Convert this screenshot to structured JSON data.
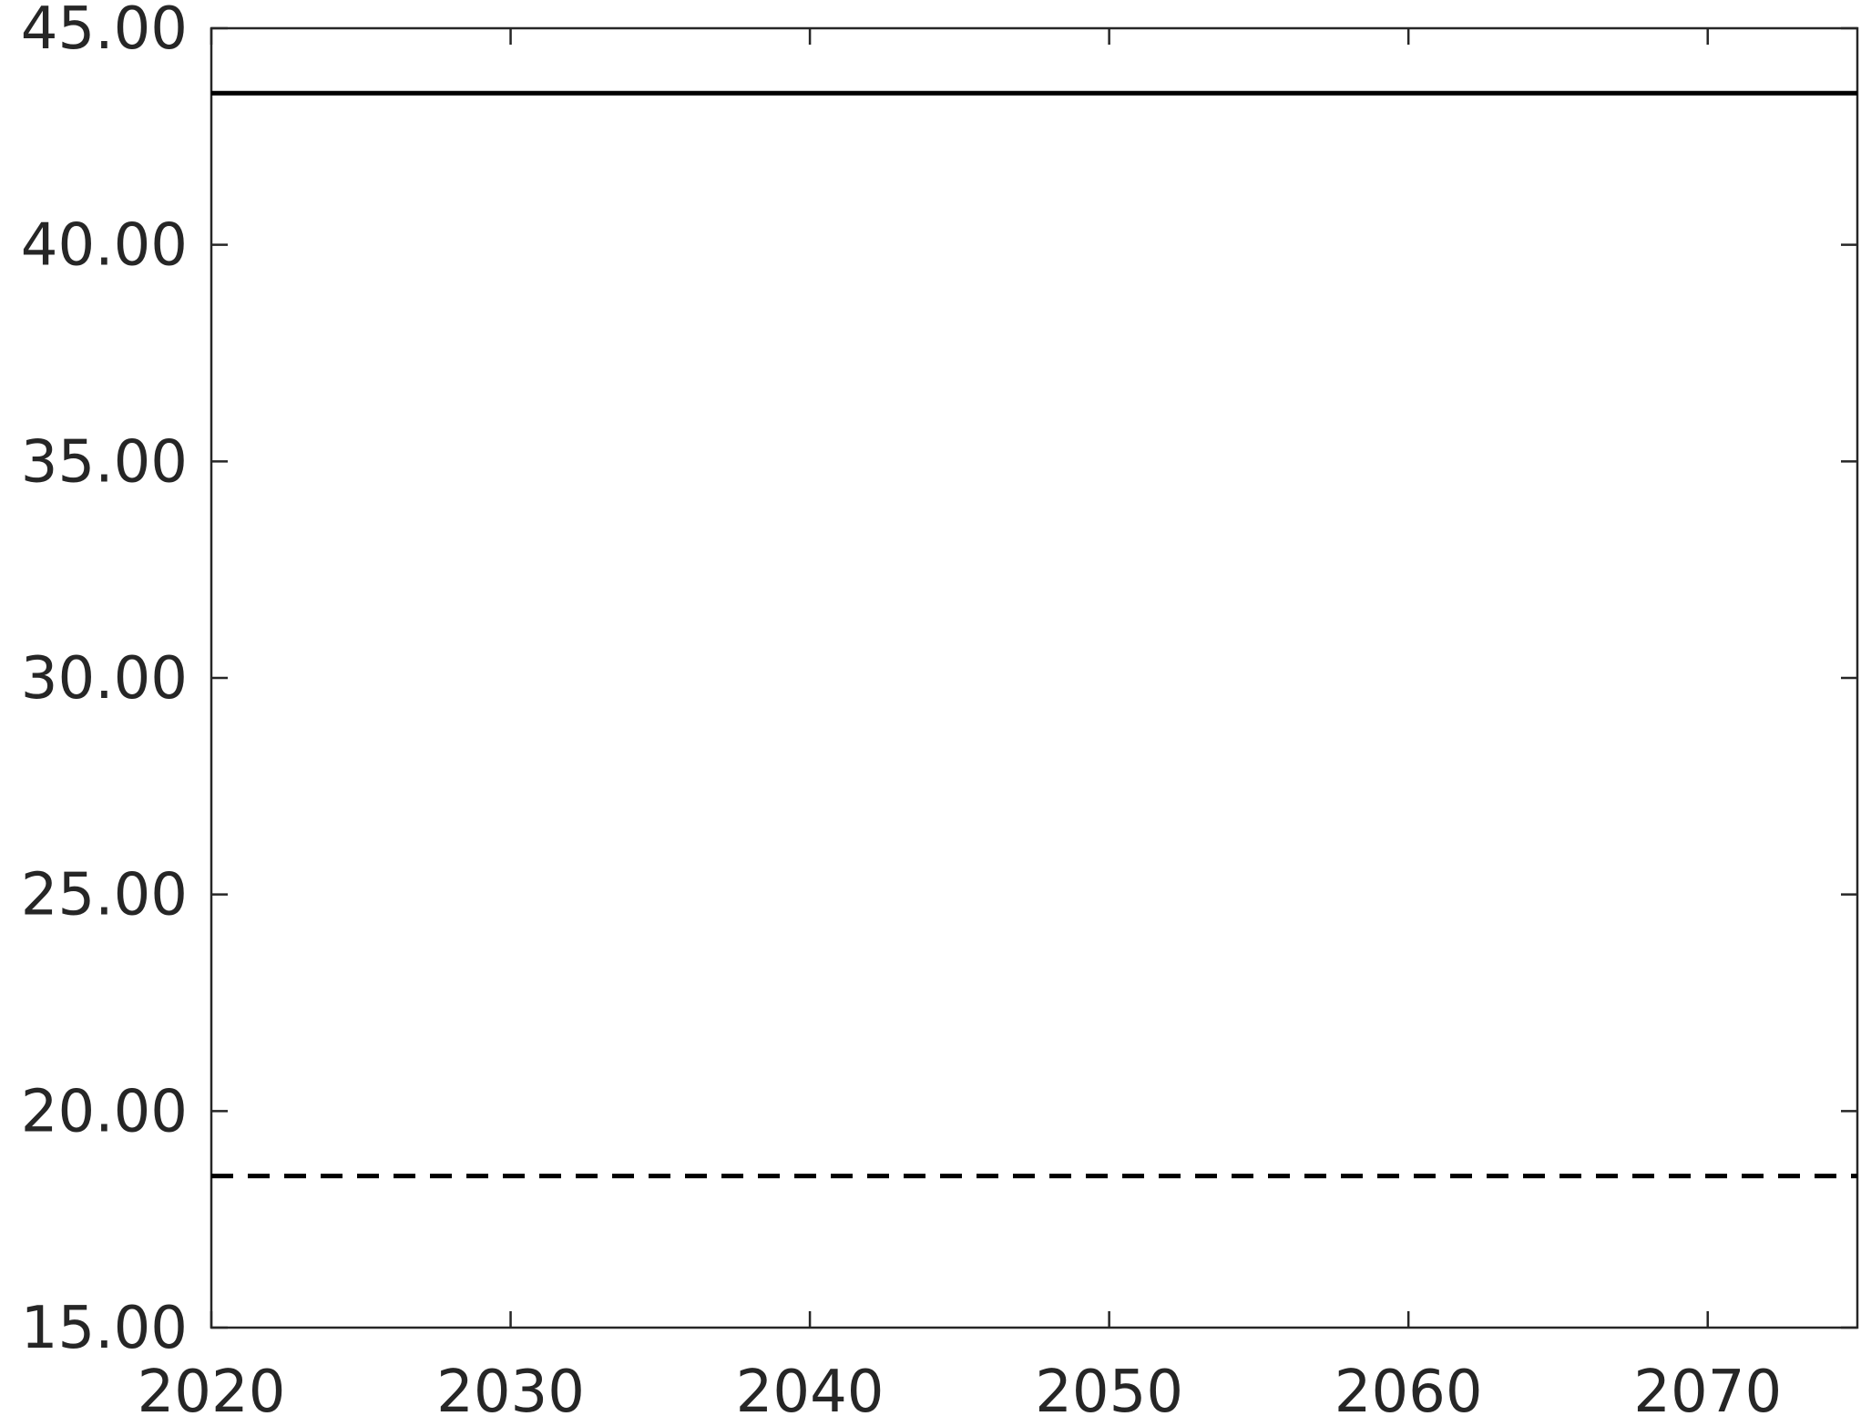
{
  "chart_data": {
    "type": "line",
    "title": "",
    "xlabel": "",
    "ylabel": "",
    "xlim": [
      2020,
      2075
    ],
    "ylim": [
      15,
      45
    ],
    "x_ticks": [
      2020,
      2030,
      2040,
      2050,
      2060,
      2070
    ],
    "y_ticks": [
      15,
      20,
      25,
      30,
      35,
      40,
      45
    ],
    "x_tick_labels": [
      "2020",
      "2030",
      "2040",
      "2050",
      "2060",
      "2070"
    ],
    "y_tick_labels": [
      "15.00",
      "20.00",
      "25.00",
      "30.00",
      "35.00",
      "40.00",
      "45.00"
    ],
    "grid": false,
    "legend": "none",
    "series": [
      {
        "style": "solid",
        "color": "#000000",
        "x": [
          2020,
          2075
        ],
        "y": [
          43.5,
          43.5
        ]
      },
      {
        "style": "dashed",
        "color": "#000000",
        "x": [
          2020,
          2075
        ],
        "y": [
          18.5,
          18.5
        ]
      }
    ]
  }
}
